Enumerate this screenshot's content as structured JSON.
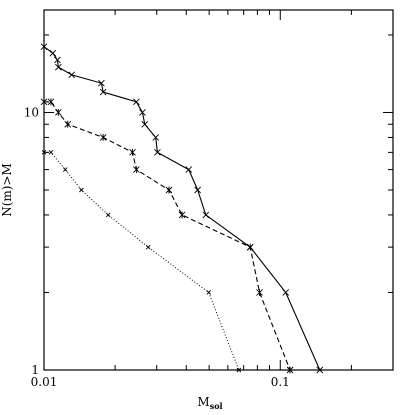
{
  "chart_data": {
    "type": "line",
    "title": "",
    "xlabel": "M",
    "xlabel_sub": "sol",
    "ylabel": "N(m)>M",
    "x_scale": "log",
    "y_scale": "log",
    "xlim": [
      0.01,
      0.3
    ],
    "ylim": [
      1,
      25
    ],
    "x_ticks": [
      {
        "value": 0.01,
        "label": "0.01"
      },
      {
        "value": 0.1,
        "label": "0.1"
      }
    ],
    "y_ticks": [
      {
        "value": 1,
        "label": "1"
      },
      {
        "value": 10,
        "label": "10"
      }
    ],
    "grid": false,
    "legend": "none",
    "series": [
      {
        "style": "solid",
        "color": "#000000",
        "markers": "cross",
        "points": [
          [
            0.01,
            18
          ],
          [
            0.0109,
            17
          ],
          [
            0.0114,
            16
          ],
          [
            0.0115,
            15
          ],
          [
            0.0131,
            14
          ],
          [
            0.0175,
            13
          ],
          [
            0.0178,
            12
          ],
          [
            0.0246,
            11
          ],
          [
            0.0261,
            10
          ],
          [
            0.0267,
            9
          ],
          [
            0.0297,
            8
          ],
          [
            0.0302,
            7
          ],
          [
            0.041,
            6
          ],
          [
            0.0447,
            5
          ],
          [
            0.0484,
            4
          ],
          [
            0.0746,
            3
          ],
          [
            0.1055,
            2
          ],
          [
            0.147,
            1
          ]
        ]
      },
      {
        "style": "dashed",
        "color": "#000000",
        "markers": "asterisk",
        "points": [
          [
            0.01,
            11
          ],
          [
            0.0107,
            11
          ],
          [
            0.0115,
            10
          ],
          [
            0.0126,
            9
          ],
          [
            0.0178,
            8
          ],
          [
            0.0237,
            7
          ],
          [
            0.0246,
            6
          ],
          [
            0.0338,
            5
          ],
          [
            0.0384,
            4
          ],
          [
            0.0746,
            3
          ],
          [
            0.0817,
            2
          ],
          [
            0.11,
            1
          ]
        ]
      },
      {
        "style": "dotted",
        "color": "#000000",
        "markers": "small-cross",
        "points": [
          [
            0.01,
            7
          ],
          [
            0.0107,
            7
          ],
          [
            0.0123,
            6
          ],
          [
            0.0144,
            5
          ],
          [
            0.0187,
            4
          ],
          [
            0.0276,
            3
          ],
          [
            0.0498,
            2
          ],
          [
            0.0668,
            1
          ]
        ]
      }
    ]
  }
}
